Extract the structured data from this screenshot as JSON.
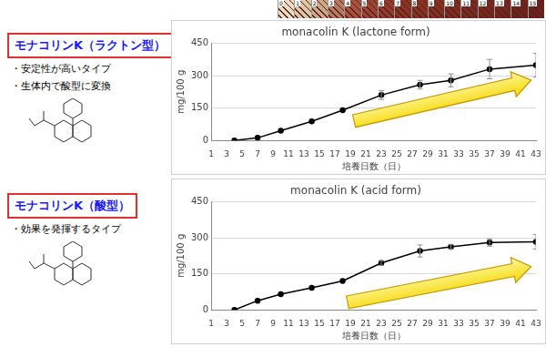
{
  "strip_labels": [
    "0",
    "1",
    "2",
    "3",
    "4",
    "5",
    "6",
    "7",
    "8",
    "9",
    "10",
    "11",
    "12",
    "13",
    "14",
    "15"
  ],
  "side_panels": [
    {
      "heading": "モナコリンK（ラクトン型）",
      "bullets": [
        "・安定性が高いタイプ",
        "・生体内で酸型に変換"
      ]
    },
    {
      "heading": "モナコリンK（酸型）",
      "bullets": [
        "・効果を発揮するタイプ"
      ]
    }
  ],
  "chart_data": [
    {
      "type": "line",
      "title": "monacolin K (lactone form)",
      "x_label": "培養日数（日）",
      "y_label": "mg/100 g",
      "x": [
        4,
        7,
        10,
        14,
        18,
        23,
        28,
        32,
        37,
        43
      ],
      "values": [
        0,
        12,
        45,
        88,
        140,
        210,
        258,
        278,
        330,
        348
      ],
      "errors": [
        null,
        null,
        null,
        null,
        null,
        20,
        20,
        30,
        45,
        55
      ],
      "color": "#000000",
      "marker": "circle",
      "xlim": [
        1,
        43
      ],
      "xticks": [
        1,
        3,
        5,
        7,
        9,
        11,
        13,
        15,
        17,
        19,
        21,
        23,
        25,
        27,
        29,
        31,
        33,
        35,
        37,
        39,
        41,
        43
      ],
      "ylim": [
        0,
        450
      ],
      "yticks": [
        0,
        150,
        300,
        450
      ],
      "grid": true
    },
    {
      "type": "line",
      "title": "monacolin K (acid form)",
      "x_label": "培養日数（日）",
      "y_label": "mg/100 g",
      "x": [
        4,
        7,
        10,
        14,
        18,
        23,
        28,
        32,
        37,
        43
      ],
      "values": [
        0,
        38,
        65,
        92,
        120,
        195,
        245,
        262,
        280,
        283
      ],
      "errors": [
        null,
        null,
        null,
        null,
        null,
        10,
        25,
        10,
        15,
        30
      ],
      "color": "#000000",
      "marker": "circle",
      "xlim": [
        1,
        43
      ],
      "xticks": [
        1,
        3,
        5,
        7,
        9,
        11,
        13,
        15,
        17,
        19,
        21,
        23,
        25,
        27,
        29,
        31,
        33,
        35,
        37,
        39,
        41,
        43
      ],
      "ylim": [
        0,
        450
      ],
      "yticks": [
        0,
        150,
        300,
        450
      ],
      "grid": true
    }
  ]
}
